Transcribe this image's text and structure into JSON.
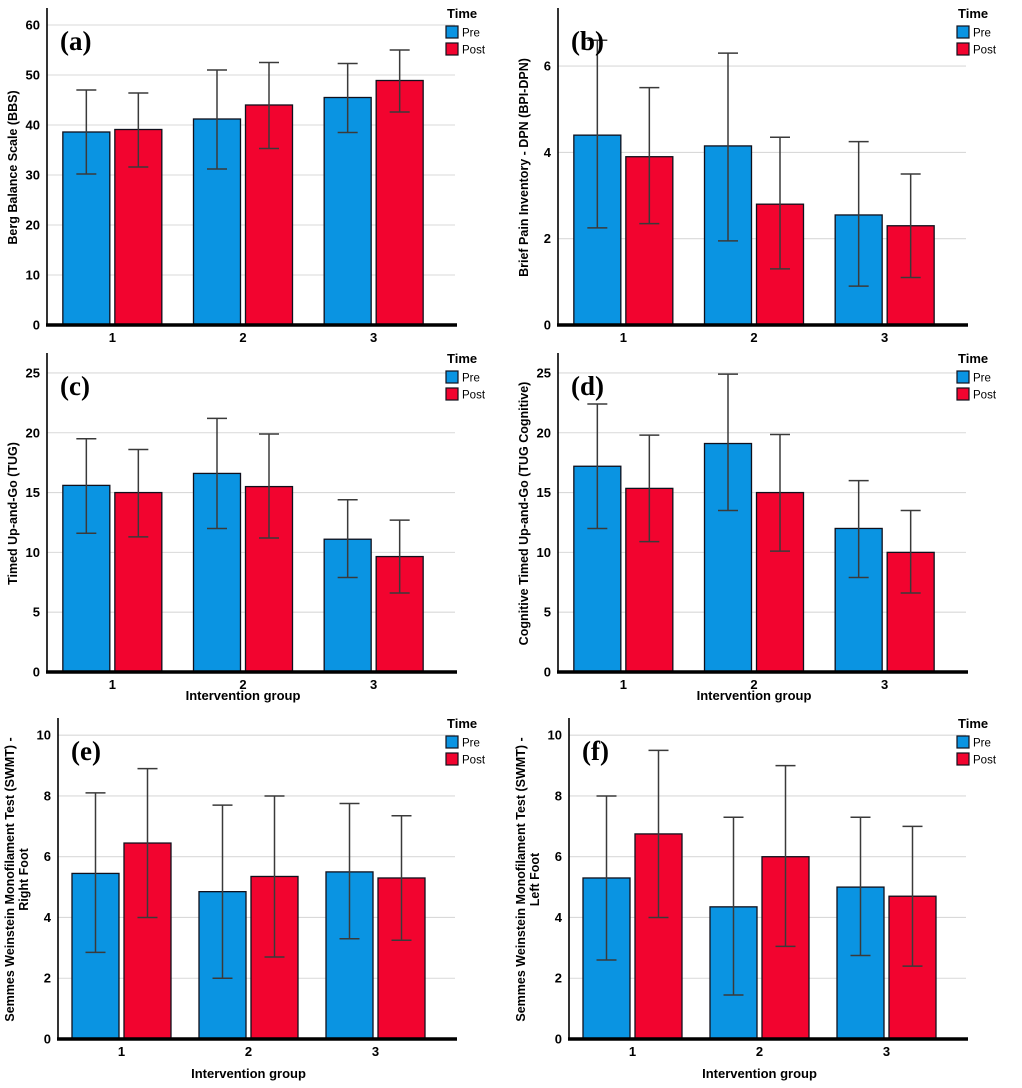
{
  "figure": {
    "xlabel": "Intervention group",
    "categories": [
      "1",
      "2",
      "3"
    ],
    "legend": {
      "title": "Time",
      "items": [
        {
          "label": "Pre",
          "color_key": "pre"
        },
        {
          "label": "Post",
          "color_key": "post"
        }
      ]
    }
  },
  "colors": {
    "pre": "#0a94e2",
    "post": "#f2042f",
    "bar_border": "#10101c",
    "error_bar": "#3a3a3a",
    "gridline": "#d9d9d9",
    "axis": "#000000"
  },
  "chart_data": [
    {
      "type": "bar",
      "panel_label": "(a)",
      "ylabel_lines": [
        "Berg Balance Scale (BBS)"
      ],
      "xlabel": "",
      "categories": [
        "1",
        "2",
        "3"
      ],
      "yticks": [
        0,
        10,
        20,
        30,
        40,
        50,
        60
      ],
      "ylim": [
        0,
        63
      ],
      "legend_title": "Time",
      "series": [
        {
          "name": "Pre",
          "values": [
            38.6,
            41.2,
            45.5
          ],
          "err_low": [
            30.2,
            31.2,
            38.5
          ],
          "err_high": [
            47.0,
            51.0,
            52.3
          ]
        },
        {
          "name": "Post",
          "values": [
            39.1,
            44.0,
            48.9
          ],
          "err_low": [
            31.6,
            35.3,
            42.6
          ],
          "err_high": [
            46.4,
            52.5,
            55.0
          ]
        }
      ]
    },
    {
      "type": "bar",
      "panel_label": "(b)",
      "ylabel_lines": [
        "Brief Pain Inventory - DPN (BPI-DPN)"
      ],
      "xlabel": "",
      "categories": [
        "1",
        "2",
        "3"
      ],
      "yticks": [
        0,
        2,
        4,
        6
      ],
      "ylim": [
        0,
        7.3
      ],
      "legend_title": "Time",
      "series": [
        {
          "name": "Pre",
          "values": [
            4.4,
            4.15,
            2.55
          ],
          "err_low": [
            2.25,
            1.95,
            0.9
          ],
          "err_high": [
            6.6,
            6.3,
            4.25
          ]
        },
        {
          "name": "Post",
          "values": [
            3.9,
            2.8,
            2.3
          ],
          "err_low": [
            2.35,
            1.3,
            1.1
          ],
          "err_high": [
            5.5,
            4.35,
            3.5
          ]
        }
      ]
    },
    {
      "type": "bar",
      "panel_label": "(c)",
      "ylabel_lines": [
        "Timed Up-and-Go (TUG)"
      ],
      "xlabel": "Intervention group",
      "categories": [
        "1",
        "2",
        "3"
      ],
      "yticks": [
        0,
        5,
        10,
        15,
        20,
        25
      ],
      "ylim": [
        0,
        26.5
      ],
      "legend_title": "Time",
      "series": [
        {
          "name": "Pre",
          "values": [
            15.6,
            16.6,
            11.1
          ],
          "err_low": [
            11.6,
            12.0,
            7.9
          ],
          "err_high": [
            19.5,
            21.2,
            14.4
          ]
        },
        {
          "name": "Post",
          "values": [
            15.0,
            15.5,
            9.65
          ],
          "err_low": [
            11.3,
            11.2,
            6.6
          ],
          "err_high": [
            18.6,
            19.9,
            12.7
          ]
        }
      ]
    },
    {
      "type": "bar",
      "panel_label": "(d)",
      "ylabel_lines": [
        "Cognitive Timed Up-and-Go (TUG Cognitive)"
      ],
      "xlabel": "Intervention group",
      "categories": [
        "1",
        "2",
        "3"
      ],
      "yticks": [
        0,
        5,
        10,
        15,
        20,
        25
      ],
      "ylim": [
        0,
        26.5
      ],
      "legend_title": "Time",
      "series": [
        {
          "name": "Pre",
          "values": [
            17.2,
            19.1,
            12.0
          ],
          "err_low": [
            12.0,
            13.5,
            7.9
          ],
          "err_high": [
            22.4,
            24.9,
            16.0
          ]
        },
        {
          "name": "Post",
          "values": [
            15.35,
            15.0,
            10.0
          ],
          "err_low": [
            10.9,
            10.1,
            6.6
          ],
          "err_high": [
            19.8,
            19.85,
            13.5
          ]
        }
      ]
    },
    {
      "type": "bar",
      "panel_label": "(e)",
      "ylabel_lines": [
        "Semmes Weinstein Monofilament Test (SWMT) -",
        "Right Foot"
      ],
      "xlabel": "Intervention group",
      "categories": [
        "1",
        "2",
        "3"
      ],
      "yticks": [
        0,
        2,
        4,
        6,
        8,
        10
      ],
      "ylim": [
        0,
        10.5
      ],
      "legend_title": "Time",
      "series": [
        {
          "name": "Pre",
          "values": [
            5.45,
            4.85,
            5.5
          ],
          "err_low": [
            2.85,
            2.0,
            3.3
          ],
          "err_high": [
            8.1,
            7.7,
            7.75
          ]
        },
        {
          "name": "Post",
          "values": [
            6.45,
            5.35,
            5.3
          ],
          "err_low": [
            4.0,
            2.7,
            3.25
          ],
          "err_high": [
            8.9,
            8.0,
            7.35
          ]
        }
      ]
    },
    {
      "type": "bar",
      "panel_label": "(f)",
      "ylabel_lines": [
        "Semmes Weinstein Monofilament Test (SWMT) -",
        "Left Foot"
      ],
      "xlabel": "Intervention group",
      "categories": [
        "1",
        "2",
        "3"
      ],
      "yticks": [
        0,
        2,
        4,
        6,
        8,
        10
      ],
      "ylim": [
        0,
        10.5
      ],
      "legend_title": "Time",
      "series": [
        {
          "name": "Pre",
          "values": [
            5.3,
            4.35,
            5.0
          ],
          "err_low": [
            2.6,
            1.45,
            2.75
          ],
          "err_high": [
            8.0,
            7.3,
            7.3
          ]
        },
        {
          "name": "Post",
          "values": [
            6.75,
            6.0,
            4.7
          ],
          "err_low": [
            4.0,
            3.05,
            2.4
          ],
          "err_high": [
            9.5,
            9.0,
            7.0
          ]
        }
      ]
    }
  ]
}
